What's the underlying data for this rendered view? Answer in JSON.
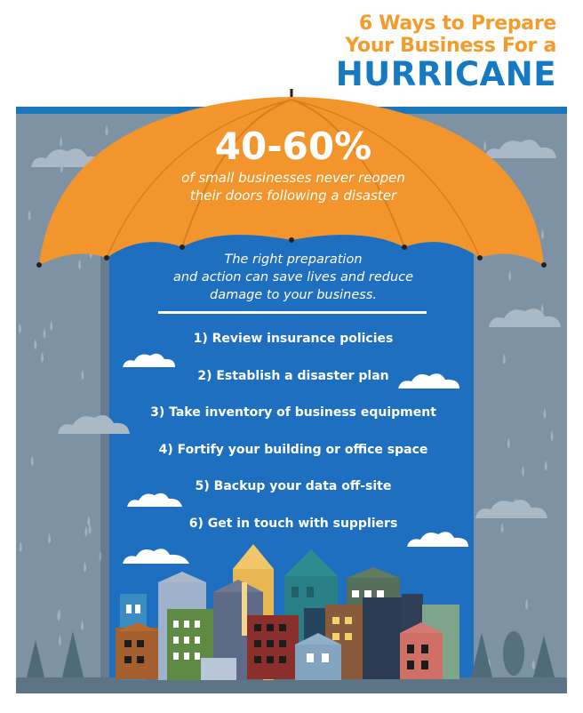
{
  "title": {
    "line1": "6 Ways to Prepare",
    "line2": "Your Business For a",
    "line3": "HURRICANE"
  },
  "umbrella": {
    "stat": "40-60%",
    "stat_caption_line1": "of small businesses never reopen",
    "stat_caption_line2": "their doors following a disaster"
  },
  "intro": {
    "line1": "The right preparation",
    "line2": "and action can save lives and reduce",
    "line3": "damage to your business."
  },
  "steps": [
    "1) Review insurance policies",
    "2) Establish a disaster plan",
    "3) Take inventory of business equipment",
    "4) Fortify your building or office space",
    "5) Backup your data off-site",
    "6) Get in touch with suppliers"
  ],
  "colors": {
    "title_orange": "#f39b2b",
    "title_blue": "#1679c3",
    "umbrella_orange": "#f2952c",
    "panel_blue": "#1f6fc0",
    "rain_background": "#7d93a4"
  }
}
